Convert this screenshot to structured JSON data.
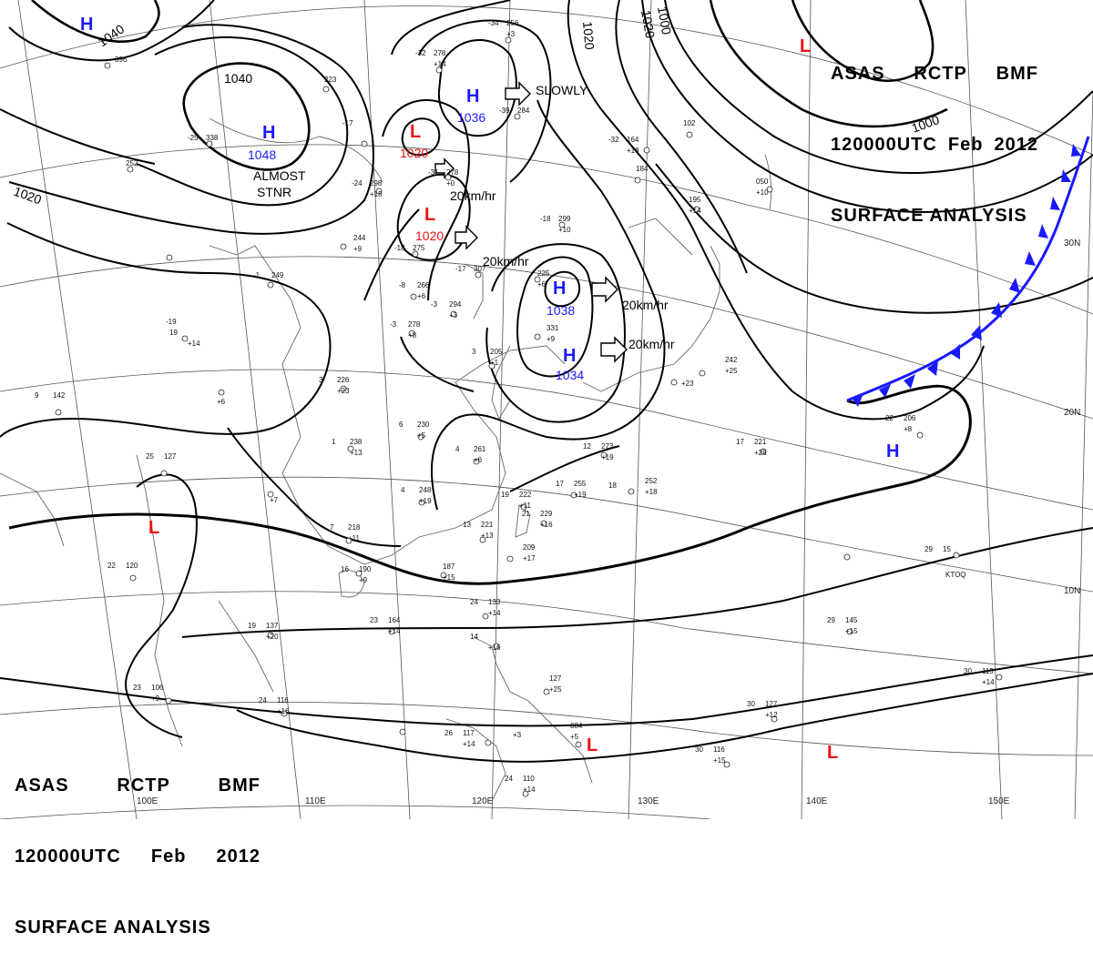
{
  "header": {
    "line1": [
      "ASAS",
      "RCTP",
      "BMF"
    ],
    "line2": [
      "120000UTC",
      "Feb",
      "2012"
    ],
    "line3": "SURFACE ANALYSIS"
  },
  "grid_labels": {
    "lon": [
      "100E",
      "110E",
      "120E",
      "130E",
      "140E",
      "150E"
    ],
    "lat": [
      "30N",
      "20N",
      "10N"
    ]
  },
  "isobar_labels": [
    "1040",
    "1040",
    "1020",
    "1020",
    "1020",
    "1000",
    "1000"
  ],
  "pressure_centers": [
    {
      "type": "H",
      "value": ""
    },
    {
      "type": "H",
      "value": "1048"
    },
    {
      "type": "H",
      "value": "1036"
    },
    {
      "type": "H",
      "value": "1038"
    },
    {
      "type": "H",
      "value": "1034"
    },
    {
      "type": "H",
      "value": ""
    },
    {
      "type": "L",
      "value": "1020"
    },
    {
      "type": "L",
      "value": "1020"
    },
    {
      "type": "L",
      "value": ""
    },
    {
      "type": "L",
      "value": ""
    },
    {
      "type": "L",
      "value": ""
    },
    {
      "type": "L",
      "value": ""
    }
  ],
  "motion_labels": [
    "SLOWLY",
    "20km/hr",
    "20km/hr",
    "20km/hr",
    "20km/hr"
  ],
  "annotations": [
    "ALMOST",
    "STNR"
  ],
  "colors": {
    "high": "#1a1aff",
    "low": "#ee1111",
    "front": "#1a1aff",
    "isobar": "#000000"
  },
  "stations": [
    {
      "t": "-34",
      "p": "256",
      "tend": "+3"
    },
    {
      "t": "-32",
      "p": "278",
      "tend": "+14"
    },
    {
      "t": "",
      "p": "396",
      "tend": ""
    },
    {
      "t": "",
      "p": "223",
      "tend": ""
    },
    {
      "t": "-25",
      "p": "338",
      "tend": ""
    },
    {
      "t": "",
      "p": "252",
      "tend": ""
    },
    {
      "t": "-17",
      "p": "",
      "tend": ""
    },
    {
      "t": "-24",
      "p": "298",
      "tend": "+18"
    },
    {
      "t": "-31",
      "p": "278",
      "tend": "+0"
    },
    {
      "t": "-39",
      "p": "284",
      "tend": ""
    },
    {
      "t": "-32",
      "p": "164",
      "tend": "+18"
    },
    {
      "t": "",
      "p": "184",
      "tend": ""
    },
    {
      "t": "",
      "p": "102",
      "tend": ""
    },
    {
      "t": "",
      "p": "195",
      "tend": "+14"
    },
    {
      "t": "",
      "p": "050",
      "tend": "+10"
    },
    {
      "t": "-18",
      "p": "299",
      "tend": "+10"
    },
    {
      "t": "-18",
      "p": "275",
      "tend": ""
    },
    {
      "t": "-17",
      "p": "307",
      "tend": ""
    },
    {
      "t": "",
      "p": "225",
      "tend": "+6"
    },
    {
      "t": "",
      "p": "244",
      "tend": "+9"
    },
    {
      "t": "-19",
      "p": "",
      "tend": ""
    },
    {
      "t": "-1",
      "p": "249",
      "tend": ""
    },
    {
      "t": "-8",
      "p": "266",
      "tend": "+6"
    },
    {
      "t": "-3",
      "p": "294",
      "tend": "+3"
    },
    {
      "t": "-3",
      "p": "278",
      "tend": "+8"
    },
    {
      "t": "",
      "p": "331",
      "tend": "+9"
    },
    {
      "t": "19",
      "p": "",
      "tend": "+14"
    },
    {
      "t": "3",
      "p": "205",
      "tend": "+1"
    },
    {
      "t": "",
      "p": "",
      "tend": "+6"
    },
    {
      "t": "3",
      "p": "226",
      "tend": "+23"
    },
    {
      "t": "9",
      "p": "142",
      "tend": ""
    },
    {
      "t": "6",
      "p": "230",
      "tend": "+5"
    },
    {
      "t": "1",
      "p": "238",
      "tend": "+13"
    },
    {
      "t": "4",
      "p": "261",
      "tend": "+6"
    },
    {
      "t": "12",
      "p": "273",
      "tend": "+19"
    },
    {
      "t": "",
      "p": "242",
      "tend": "+25"
    },
    {
      "t": "",
      "p": "",
      "tend": "+23"
    },
    {
      "t": "22",
      "p": "206",
      "tend": "+8"
    },
    {
      "t": "17",
      "p": "221",
      "tend": "+28"
    },
    {
      "t": "25",
      "p": "127",
      "tend": ""
    },
    {
      "t": "",
      "p": "",
      "tend": "+7"
    },
    {
      "t": "4",
      "p": "248",
      "tend": "+19"
    },
    {
      "t": "17",
      "p": "255",
      "tend": "+19"
    },
    {
      "t": "18",
      "p": "",
      "tend": ""
    },
    {
      "t": "",
      "p": "252",
      "tend": "+18"
    },
    {
      "t": "19",
      "p": "222",
      "tend": "+11"
    },
    {
      "t": "21",
      "p": "229",
      "tend": "+16"
    },
    {
      "t": "13",
      "p": "221",
      "tend": "+13"
    },
    {
      "t": "7",
      "p": "218",
      "tend": "+11"
    },
    {
      "t": "",
      "p": "209",
      "tend": "+17"
    },
    {
      "t": "22",
      "p": "120",
      "tend": ""
    },
    {
      "t": "16",
      "p": "190",
      "tend": "+9"
    },
    {
      "t": "",
      "p": "187",
      "tend": "+15"
    },
    {
      "t": "29",
      "p": "15",
      "tend": ""
    },
    {
      "t": "24",
      "p": "133",
      "tend": "+14"
    },
    {
      "t": "23",
      "p": "164",
      "tend": "+14"
    },
    {
      "t": "19",
      "p": "137",
      "tend": "+20"
    },
    {
      "t": "14",
      "p": "",
      "tend": "+16"
    },
    {
      "t": "29",
      "p": "145",
      "tend": "+15"
    },
    {
      "t": "30",
      "p": "115",
      "tend": "+14"
    },
    {
      "t": "",
      "p": "127",
      "tend": "+25"
    },
    {
      "t": "23",
      "p": "106",
      "tend": "+9"
    },
    {
      "t": "24",
      "p": "116",
      "tend": "+16"
    },
    {
      "t": "30",
      "p": "127",
      "tend": "+12"
    },
    {
      "t": "26",
      "p": "117",
      "tend": "+14"
    },
    {
      "t": "",
      "p": "",
      "tend": "+3"
    },
    {
      "t": "",
      "p": "084",
      "tend": "+5"
    },
    {
      "t": "30",
      "p": "116",
      "tend": "+15"
    },
    {
      "t": "24",
      "p": "110",
      "tend": "+14"
    }
  ],
  "station_ids": [
    "KTOQ"
  ]
}
